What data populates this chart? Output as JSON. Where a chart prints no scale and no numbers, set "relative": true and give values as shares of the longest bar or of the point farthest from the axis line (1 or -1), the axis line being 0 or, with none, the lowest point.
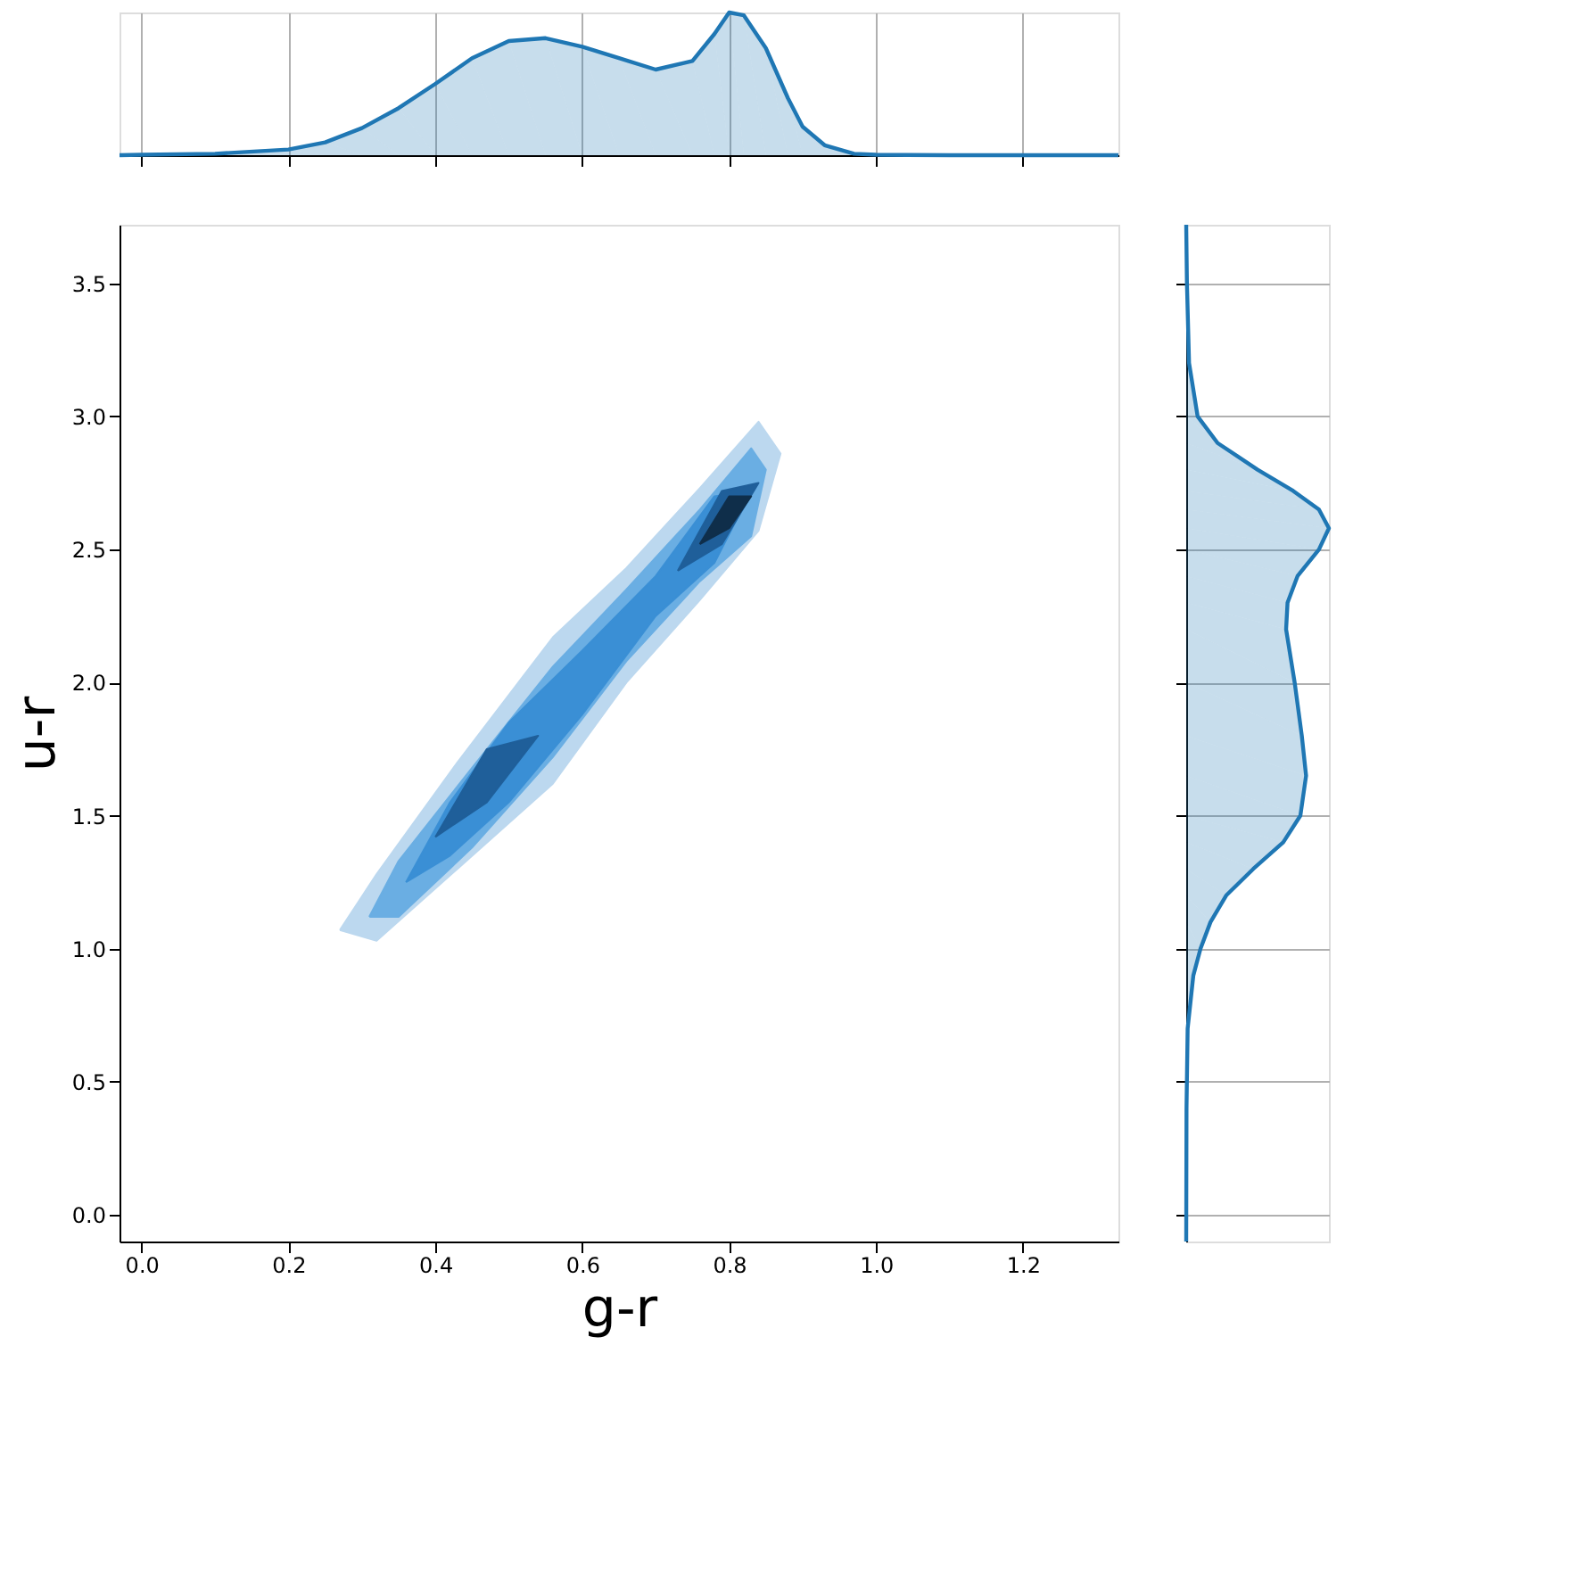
{
  "chart_data": [
    {
      "type": "area",
      "relative": true,
      "grid": "x",
      "tick_labels": false,
      "marker": "none",
      "line_style": "solid",
      "xlim": [
        -0.03,
        1.33
      ],
      "xticks": [
        0,
        0.2,
        0.4,
        0.6,
        0.8,
        1,
        1.2
      ],
      "series": [
        {
          "color": "#1f77b4",
          "x": [
            -0.03,
            0.0,
            0.1,
            0.2,
            0.25,
            0.3,
            0.35,
            0.4,
            0.45,
            0.5,
            0.55,
            0.6,
            0.65,
            0.7,
            0.75,
            0.78,
            0.8,
            0.82,
            0.85,
            0.88,
            0.9,
            0.93,
            0.97,
            1.0,
            1.1,
            1.33
          ],
          "values": [
            0,
            0.003,
            0.01,
            0.04,
            0.09,
            0.19,
            0.33,
            0.5,
            0.68,
            0.8,
            0.82,
            0.76,
            0.68,
            0.6,
            0.66,
            0.85,
            1.0,
            0.98,
            0.75,
            0.4,
            0.2,
            0.07,
            0.01,
            0.003,
            0,
            0
          ]
        }
      ]
    },
    {
      "type": "area",
      "xlabel": "g-r",
      "ylabel": "u-r",
      "grid": false,
      "marker": "none",
      "line_style": "solid",
      "xlim": [
        -0.03,
        1.33
      ],
      "xticks": [
        {
          "value": 0,
          "label": "0.0"
        },
        0.2,
        0.4,
        0.6,
        0.8,
        {
          "value": 1,
          "label": "1.0"
        },
        1.2
      ],
      "ylim": [
        -0.1,
        3.72
      ],
      "yticks": [
        {
          "value": 0,
          "label": "0.0"
        },
        0.5,
        {
          "value": 1,
          "label": "1.0"
        },
        1.5,
        {
          "value": 2,
          "label": "2.0"
        },
        2.5,
        {
          "value": 3,
          "label": "3.0"
        },
        3.5
      ],
      "series": [
        {
          "color": "#bcd8ef",
          "x": [
            0.27,
            0.32,
            0.43,
            0.56,
            0.66,
            0.76,
            0.84,
            0.87,
            0.84,
            0.76,
            0.66,
            0.56,
            0.43,
            0.32,
            0.27
          ],
          "values": [
            1.07,
            1.28,
            1.7,
            2.17,
            2.43,
            2.73,
            2.98,
            2.86,
            2.57,
            2.31,
            2.0,
            1.62,
            1.3,
            1.03,
            1.07
          ]
        },
        {
          "color": "#6aaee3",
          "x": [
            0.31,
            0.35,
            0.45,
            0.56,
            0.66,
            0.76,
            0.83,
            0.85,
            0.83,
            0.76,
            0.66,
            0.56,
            0.45,
            0.35,
            0.31
          ],
          "values": [
            1.12,
            1.33,
            1.68,
            2.06,
            2.35,
            2.65,
            2.88,
            2.8,
            2.55,
            2.38,
            2.08,
            1.72,
            1.38,
            1.12,
            1.12
          ]
        },
        {
          "color": "#3a8fd5",
          "x": [
            0.36,
            0.42,
            0.5,
            0.6,
            0.7,
            0.78,
            0.83,
            0.78,
            0.7,
            0.6,
            0.5,
            0.42,
            0.36
          ],
          "values": [
            1.25,
            1.55,
            1.85,
            2.12,
            2.4,
            2.7,
            2.72,
            2.45,
            2.25,
            1.88,
            1.55,
            1.35,
            1.25
          ]
        },
        {
          "color": "#1f5f9a",
          "x": [
            0.4,
            0.47,
            0.54,
            0.47,
            0.4
          ],
          "values": [
            1.42,
            1.75,
            1.8,
            1.55,
            1.42
          ]
        },
        {
          "color": "#1f5f9a",
          "x": [
            0.73,
            0.79,
            0.84,
            0.79,
            0.73
          ],
          "values": [
            2.42,
            2.72,
            2.75,
            2.52,
            2.42
          ]
        },
        {
          "color": "#0f2e4a",
          "x": [
            0.76,
            0.8,
            0.83,
            0.8,
            0.76
          ],
          "values": [
            2.52,
            2.7,
            2.7,
            2.58,
            2.52
          ]
        }
      ]
    },
    {
      "type": "area",
      "orientation": "horizontal",
      "relative": true,
      "grid": "y",
      "tick_labels": false,
      "marker": "none",
      "line_style": "solid",
      "ylim": [
        -0.1,
        3.72
      ],
      "yticks": [
        0,
        0.5,
        1,
        1.5,
        2,
        2.5,
        3,
        3.5
      ],
      "series": [
        {
          "color": "#1f77b4",
          "x": [
            -0.1,
            0.4,
            0.7,
            0.9,
            1.0,
            1.1,
            1.2,
            1.3,
            1.4,
            1.5,
            1.65,
            1.8,
            2.0,
            2.2,
            2.3,
            2.4,
            2.5,
            2.58,
            2.65,
            2.72,
            2.8,
            2.9,
            3.0,
            3.2,
            3.5,
            3.72
          ],
          "values": [
            0,
            0.002,
            0.01,
            0.05,
            0.1,
            0.17,
            0.28,
            0.47,
            0.68,
            0.8,
            0.84,
            0.81,
            0.76,
            0.7,
            0.71,
            0.78,
            0.93,
            1.0,
            0.93,
            0.75,
            0.5,
            0.22,
            0.08,
            0.02,
            0.005,
            0
          ]
        }
      ]
    }
  ]
}
